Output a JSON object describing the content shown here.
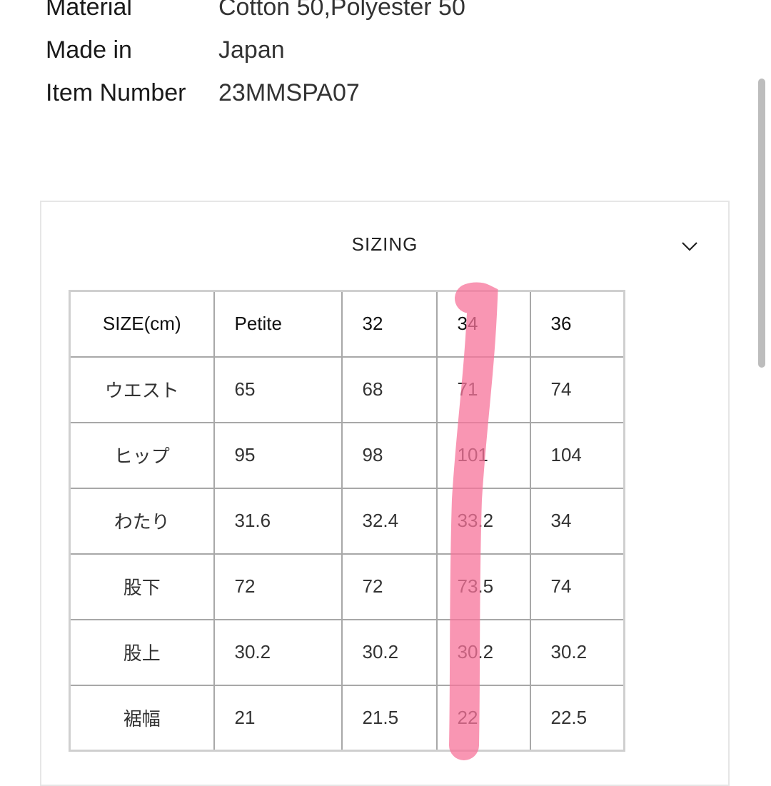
{
  "specs": [
    {
      "label": "Material",
      "value": "Cotton 50,Polyester 50"
    },
    {
      "label": "Made in",
      "value": "Japan"
    },
    {
      "label": "Item Number",
      "value": "23MMSPA07"
    }
  ],
  "sizing": {
    "title": "SIZING",
    "toggle_icon": "chevron-down-icon",
    "header": [
      "SIZE(cm)",
      "Petite",
      "32",
      "34",
      "36"
    ],
    "rows": [
      [
        "ウエスト",
        "65",
        "68",
        "71",
        "74"
      ],
      [
        "ヒップ",
        "95",
        "98",
        "101",
        "104"
      ],
      [
        "わたり",
        "31.6",
        "32.4",
        "33.2",
        "34"
      ],
      [
        "股下",
        "72",
        "72",
        "73.5",
        "74"
      ],
      [
        "股上",
        "30.2",
        "30.2",
        "30.2",
        "30.2"
      ],
      [
        "裾幅",
        "21",
        "21.5",
        "22",
        "22.5"
      ]
    ],
    "highlighted_column": "34",
    "highlight_color": "#f7739a"
  }
}
